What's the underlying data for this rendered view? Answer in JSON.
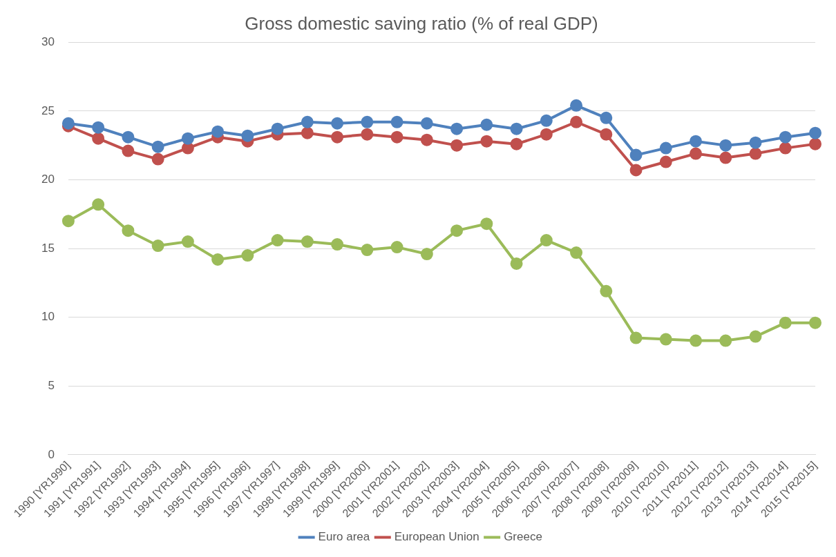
{
  "chart_data": {
    "type": "line",
    "title": "Gross domestic saving ratio (% of real GDP)",
    "categories": [
      "1990 [YR1990]",
      "1991 [YR1991]",
      "1992 [YR1992]",
      "1993 [YR1993]",
      "1994 [YR1994]",
      "1995 [YR1995]",
      "1996 [YR1996]",
      "1997 [YR1997]",
      "1998 [YR1998]",
      "1999 [YR1999]",
      "2000 [YR2000]",
      "2001 [YR2001]",
      "2002 [YR2002]",
      "2003 [YR2003]",
      "2004 [YR2004]",
      "2005 [YR2005]",
      "2006 [YR2006]",
      "2007 [YR2007]",
      "2008 [YR2008]",
      "2009 [YR2009]",
      "2010 [YR2010]",
      "2011 [YR2011]",
      "2012 [YR2012]",
      "2013 [YR2013]",
      "2014 [YR2014]",
      "2015 [YR2015]"
    ],
    "series": [
      {
        "name": "Euro area",
        "color": "#4f81bd",
        "values": [
          24.1,
          23.8,
          23.1,
          22.4,
          23.0,
          23.5,
          23.2,
          23.7,
          24.2,
          24.1,
          24.2,
          24.2,
          24.1,
          23.7,
          24.0,
          23.7,
          24.3,
          25.4,
          24.5,
          21.8,
          22.3,
          22.8,
          22.5,
          22.7,
          23.1,
          23.4
        ]
      },
      {
        "name": "European Union",
        "color": "#c0504d",
        "values": [
          23.9,
          23.0,
          22.1,
          21.5,
          22.3,
          23.1,
          22.8,
          23.3,
          23.4,
          23.1,
          23.3,
          23.1,
          22.9,
          22.5,
          22.8,
          22.6,
          23.3,
          24.2,
          23.3,
          20.7,
          21.3,
          21.9,
          21.6,
          21.9,
          22.3,
          22.6
        ]
      },
      {
        "name": "Greece",
        "color": "#9bbb59",
        "values": [
          17.0,
          18.2,
          16.3,
          15.2,
          15.5,
          14.2,
          14.5,
          15.6,
          15.5,
          15.3,
          14.9,
          15.1,
          14.6,
          16.3,
          16.8,
          13.9,
          15.6,
          14.7,
          11.9,
          8.5,
          8.4,
          8.3,
          8.3,
          8.6,
          9.6,
          9.6
        ]
      }
    ],
    "ylim": [
      0,
      30
    ],
    "yticks": [
      0,
      5,
      10,
      15,
      20,
      25,
      30
    ],
    "grid": "y",
    "legend": "bottom",
    "marker": "circle",
    "line_style": "solid"
  }
}
